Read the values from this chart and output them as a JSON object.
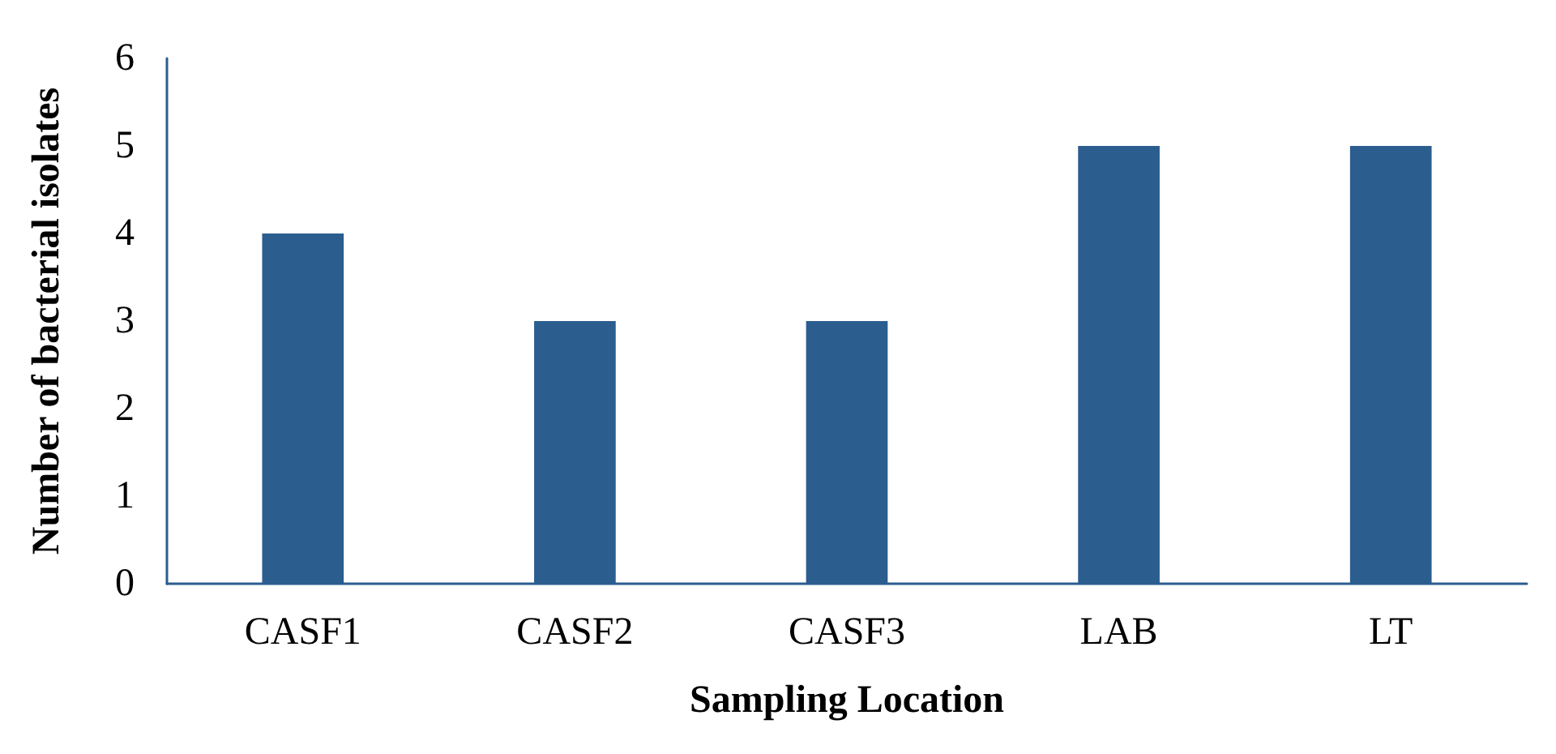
{
  "chart_data": {
    "type": "bar",
    "xlabel": "Sampling Location",
    "ylabel": "Number of bacterial isolates",
    "categories": [
      "CASF1",
      "CASF2",
      "CASF3",
      "LAB",
      "LT"
    ],
    "values": [
      4,
      3,
      3,
      5,
      5
    ],
    "color": "#2b5d8f",
    "ylim": [
      0,
      6
    ],
    "yticks": [
      0,
      1,
      2,
      3,
      4,
      5,
      6
    ],
    "grid": false
  }
}
